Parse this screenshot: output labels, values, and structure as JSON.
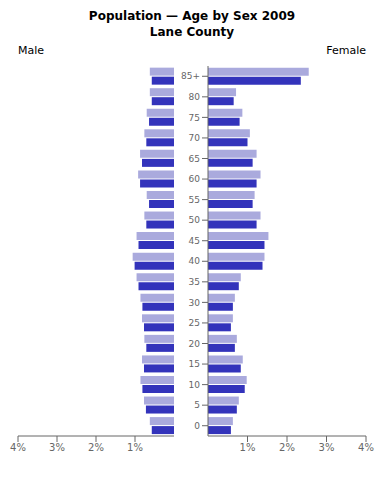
{
  "title": "Population — Age by Sex 2009",
  "subtitle": "Lane County",
  "chart_data": [
    {
      "type": "bar",
      "orientation": "horizontal",
      "title": "Male",
      "categories": [
        "85+",
        "80",
        "75",
        "70",
        "65",
        "60",
        "55",
        "50",
        "45",
        "40",
        "35",
        "30",
        "25",
        "20",
        "15",
        "10",
        "5",
        "0"
      ],
      "series": [
        {
          "color": "#aaaadd",
          "values": [
            0.62,
            0.62,
            0.7,
            0.76,
            0.87,
            0.92,
            0.7,
            0.76,
            0.96,
            1.06,
            0.96,
            0.86,
            0.82,
            0.76,
            0.82,
            0.86,
            0.77,
            0.62
          ]
        },
        {
          "color": "#3333bb",
          "values": [
            0.57,
            0.57,
            0.64,
            0.71,
            0.82,
            0.87,
            0.64,
            0.71,
            0.91,
            1.01,
            0.91,
            0.81,
            0.77,
            0.71,
            0.77,
            0.81,
            0.72,
            0.57
          ]
        }
      ],
      "xlim": [
        4,
        0
      ],
      "xticks": [
        {
          "value": 4,
          "label": "4%"
        },
        {
          "value": 3,
          "label": "3%"
        },
        {
          "value": 2,
          "label": "2%"
        },
        {
          "value": 1,
          "label": "1%"
        }
      ],
      "grid": false,
      "tick_labels": "x"
    },
    {
      "type": "bar",
      "orientation": "horizontal",
      "title": "Female",
      "categories": [
        "85+",
        "80",
        "75",
        "70",
        "65",
        "60",
        "55",
        "50",
        "45",
        "40",
        "35",
        "30",
        "25",
        "20",
        "15",
        "10",
        "5",
        "0"
      ],
      "series": [
        {
          "color": "#aaaadd",
          "values": [
            2.55,
            0.71,
            0.87,
            1.06,
            1.23,
            1.33,
            1.18,
            1.33,
            1.53,
            1.43,
            0.83,
            0.68,
            0.63,
            0.73,
            0.88,
            0.98,
            0.78,
            0.63
          ]
        },
        {
          "color": "#3333bb",
          "values": [
            2.35,
            0.65,
            0.8,
            1.0,
            1.13,
            1.23,
            1.13,
            1.23,
            1.43,
            1.38,
            0.78,
            0.63,
            0.58,
            0.68,
            0.83,
            0.93,
            0.73,
            0.58
          ]
        }
      ],
      "xlim": [
        0,
        4
      ],
      "xticks": [
        {
          "value": 1,
          "label": "1%"
        },
        {
          "value": 2,
          "label": "2%"
        },
        {
          "value": 3,
          "label": "3%"
        },
        {
          "value": 4,
          "label": "4%"
        }
      ],
      "grid": false
    }
  ]
}
